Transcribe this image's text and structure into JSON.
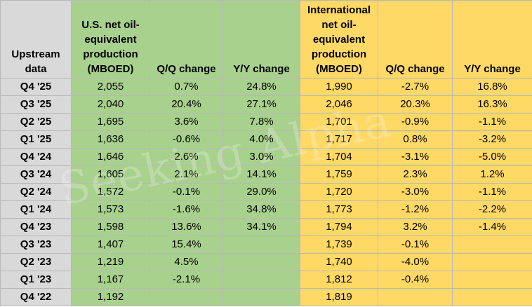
{
  "headers": {
    "label": "Upstream data",
    "us_production": "U.S. net oil-equivalent production (MBOED)",
    "us_qq": "Q/Q change",
    "us_yy": "Y/Y change",
    "intl_production": "International net oil-equivalent production (MBOED)",
    "intl_qq": "Q/Q change",
    "intl_yy": "Y/Y change"
  },
  "rows": [
    {
      "quarter": "Q4 '25",
      "us": "2,055",
      "us_qq": "0.7%",
      "us_yy": "24.8%",
      "intl": "1,990",
      "intl_qq": "-2.7%",
      "intl_yy": "16.8%"
    },
    {
      "quarter": "Q3 '25",
      "us": "2,040",
      "us_qq": "20.4%",
      "us_yy": "27.1%",
      "intl": "2,046",
      "intl_qq": "20.3%",
      "intl_yy": "16.3%"
    },
    {
      "quarter": "Q2 '25",
      "us": "1,695",
      "us_qq": "3.6%",
      "us_yy": "7.8%",
      "intl": "1,701",
      "intl_qq": "-0.9%",
      "intl_yy": "-1.1%"
    },
    {
      "quarter": "Q1 '25",
      "us": "1,636",
      "us_qq": "-0.6%",
      "us_yy": "4.0%",
      "intl": "1,717",
      "intl_qq": "0.8%",
      "intl_yy": "-3.2%"
    },
    {
      "quarter": "Q4 '24",
      "us": "1,646",
      "us_qq": "2.6%",
      "us_yy": "3.0%",
      "intl": "1,704",
      "intl_qq": "-3.1%",
      "intl_yy": "-5.0%"
    },
    {
      "quarter": "Q3 '24",
      "us": "1,605",
      "us_qq": "2.1%",
      "us_yy": "14.1%",
      "intl": "1,759",
      "intl_qq": "2.3%",
      "intl_yy": "1.2%"
    },
    {
      "quarter": "Q2 '24",
      "us": "1,572",
      "us_qq": "-0.1%",
      "us_yy": "29.0%",
      "intl": "1,720",
      "intl_qq": "-3.0%",
      "intl_yy": "-1.1%"
    },
    {
      "quarter": "Q1 '24",
      "us": "1,573",
      "us_qq": "-1.6%",
      "us_yy": "34.8%",
      "intl": "1,773",
      "intl_qq": "-1.2%",
      "intl_yy": "-2.2%"
    },
    {
      "quarter": "Q4 '23",
      "us": "1,598",
      "us_qq": "13.6%",
      "us_yy": "34.1%",
      "intl": "1,794",
      "intl_qq": "3.2%",
      "intl_yy": "-1.4%"
    },
    {
      "quarter": "Q3 '23",
      "us": "1,407",
      "us_qq": "15.4%",
      "us_yy": "",
      "intl": "1,739",
      "intl_qq": "-0.1%",
      "intl_yy": ""
    },
    {
      "quarter": "Q2 '23",
      "us": "1,219",
      "us_qq": "4.5%",
      "us_yy": "",
      "intl": "1,740",
      "intl_qq": "-4.0%",
      "intl_yy": ""
    },
    {
      "quarter": "Q1 '23",
      "us": "1,167",
      "us_qq": "-2.1%",
      "us_yy": "",
      "intl": "1,812",
      "intl_qq": "-0.4%",
      "intl_yy": ""
    },
    {
      "quarter": "Q4 '22",
      "us": "1,192",
      "us_qq": "",
      "us_yy": "",
      "intl": "1,819",
      "intl_qq": "",
      "intl_yy": ""
    }
  ],
  "watermark": "Seeking Alpha",
  "colors": {
    "label_bg": "#d9d9d9",
    "us_bg": "#a9d18e",
    "intl_bg": "#ffd966",
    "border": "#b8b8b8"
  }
}
